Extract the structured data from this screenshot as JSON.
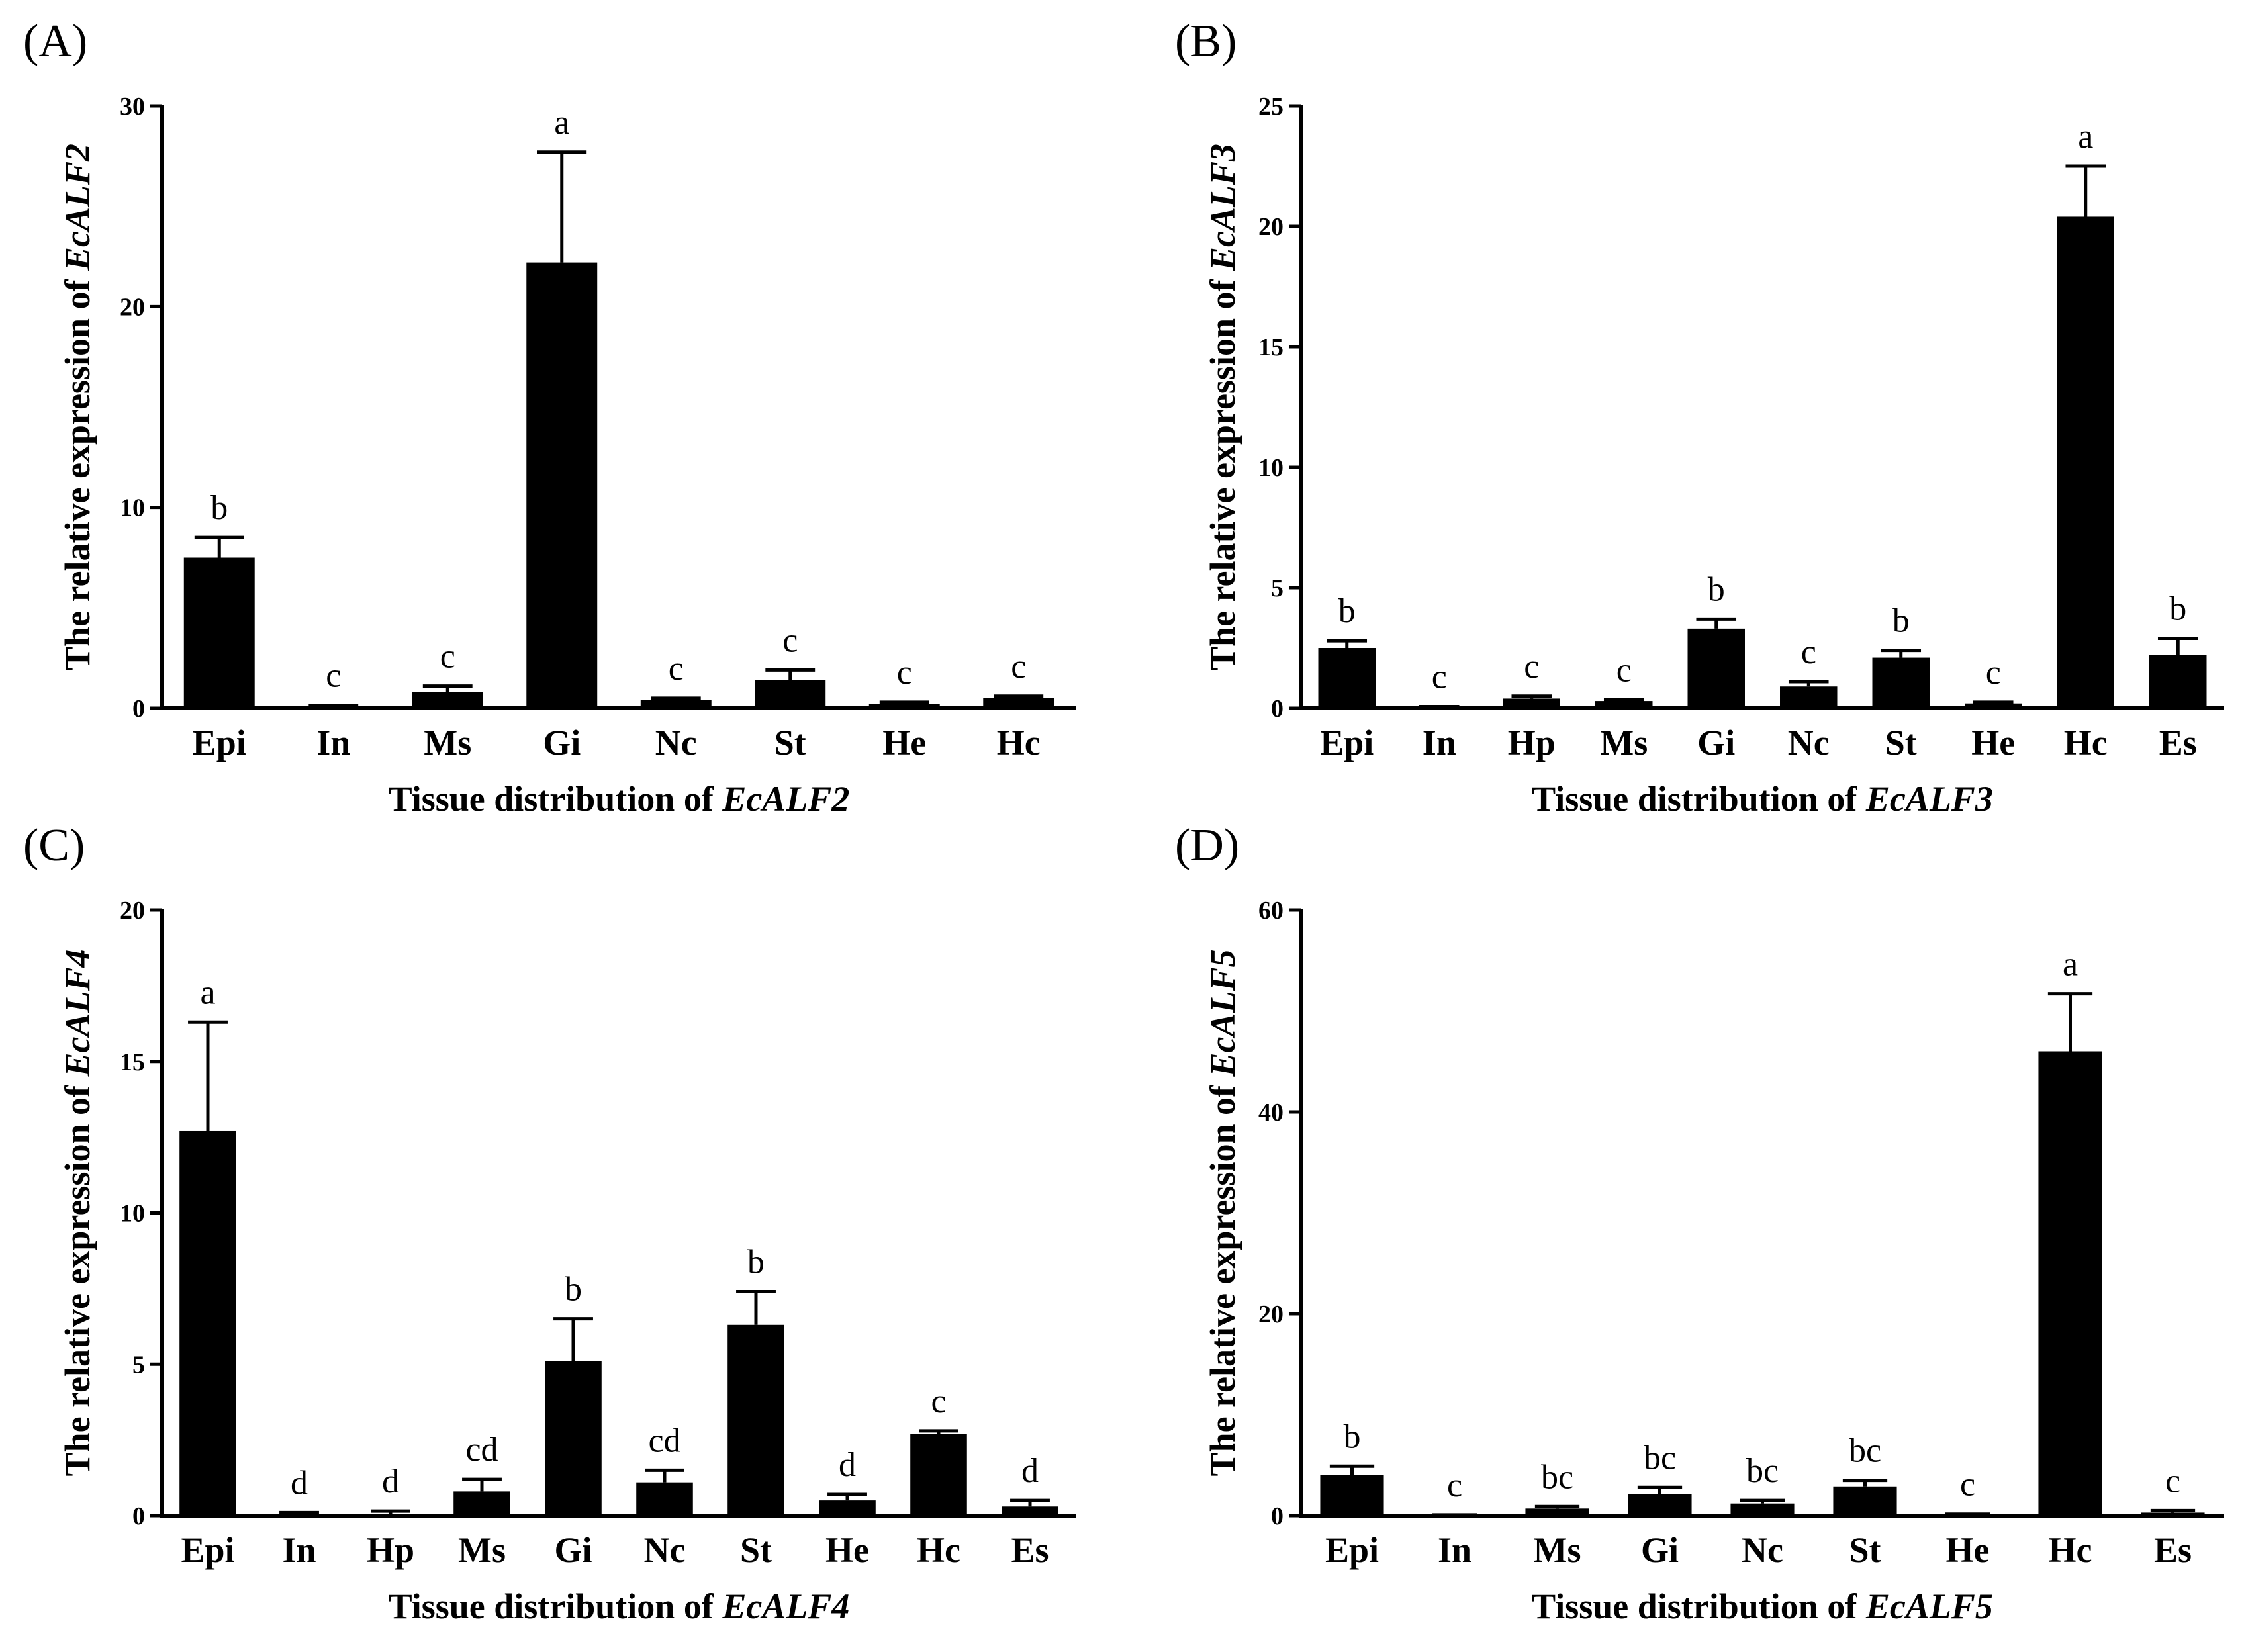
{
  "colors": {
    "bar": "#000000",
    "axis": "#000000",
    "background": "#ffffff"
  },
  "chart_data": [
    {
      "type": "bar",
      "panel": "(A)",
      "categories": [
        "Epi",
        "In",
        "Ms",
        "Gi",
        "Nc",
        "St",
        "He",
        "Hc"
      ],
      "values": [
        7.5,
        0.1,
        0.8,
        22.2,
        0.4,
        1.4,
        0.2,
        0.5
      ],
      "errors": [
        1.0,
        0.05,
        0.3,
        5.5,
        0.1,
        0.5,
        0.1,
        0.1
      ],
      "significance": [
        "b",
        "c",
        "c",
        "a",
        "c",
        "c",
        "c",
        "c"
      ],
      "xlabel_prefix": "Tissue distribution of ",
      "xlabel_gene": "EcALF2",
      "ylabel_prefix": "The relative expression of ",
      "ylabel_gene": "EcALF2",
      "ylim": [
        0,
        30
      ],
      "yticks": [
        0,
        10,
        20,
        30
      ]
    },
    {
      "type": "bar",
      "panel": "(B)",
      "categories": [
        "Epi",
        "In",
        "Hp",
        "Ms",
        "Gi",
        "Nc",
        "St",
        "He",
        "Hc",
        "Es"
      ],
      "values": [
        2.5,
        0.05,
        0.4,
        0.3,
        3.3,
        0.9,
        2.1,
        0.2,
        20.4,
        2.2
      ],
      "errors": [
        0.3,
        0.02,
        0.1,
        0.05,
        0.4,
        0.2,
        0.3,
        0.05,
        2.1,
        0.7
      ],
      "significance": [
        "b",
        "c",
        "c",
        "c",
        "b",
        "c",
        "b",
        "c",
        "a",
        "b"
      ],
      "xlabel_prefix": "Tissue distribution of ",
      "xlabel_gene": "EcALF3",
      "ylabel_prefix": "The relative expression of ",
      "ylabel_gene": "EcALF3",
      "ylim": [
        0,
        25
      ],
      "yticks": [
        0,
        5,
        10,
        15,
        20,
        25
      ]
    },
    {
      "type": "bar",
      "panel": "(C)",
      "categories": [
        "Epi",
        "In",
        "Hp",
        "Ms",
        "Gi",
        "Nc",
        "St",
        "He",
        "Hc",
        "Es"
      ],
      "values": [
        12.7,
        0.05,
        0.05,
        0.8,
        5.1,
        1.1,
        6.3,
        0.5,
        2.7,
        0.3
      ],
      "errors": [
        3.6,
        0.05,
        0.1,
        0.4,
        1.4,
        0.4,
        1.1,
        0.2,
        0.1,
        0.2
      ],
      "significance": [
        "a",
        "d",
        "d",
        "cd",
        "b",
        "cd",
        "b",
        "d",
        "c",
        "d"
      ],
      "xlabel_prefix": "Tissue distribution of ",
      "xlabel_gene": "EcALF4",
      "ylabel_prefix": "The relative expression of ",
      "ylabel_gene": "EcALF4",
      "ylim": [
        0,
        20
      ],
      "yticks": [
        0,
        5,
        10,
        15,
        20
      ]
    },
    {
      "type": "bar",
      "panel": "(D)",
      "categories": [
        "Epi",
        "In",
        "Ms",
        "Gi",
        "Nc",
        "St",
        "He",
        "Hc",
        "Es"
      ],
      "values": [
        4.0,
        0.05,
        0.7,
        2.1,
        1.2,
        2.9,
        0.1,
        46.0,
        0.3
      ],
      "errors": [
        0.9,
        0.02,
        0.2,
        0.7,
        0.3,
        0.6,
        0.05,
        5.7,
        0.2
      ],
      "significance": [
        "b",
        "c",
        "bc",
        "bc",
        "bc",
        "bc",
        "c",
        "a",
        "c"
      ],
      "xlabel_prefix": "Tissue distribution of ",
      "xlabel_gene": "EcALF5",
      "ylabel_prefix": "The relative expression of ",
      "ylabel_gene": "EcALF5",
      "ylim": [
        0,
        60
      ],
      "yticks": [
        0,
        20,
        40,
        60
      ]
    }
  ]
}
